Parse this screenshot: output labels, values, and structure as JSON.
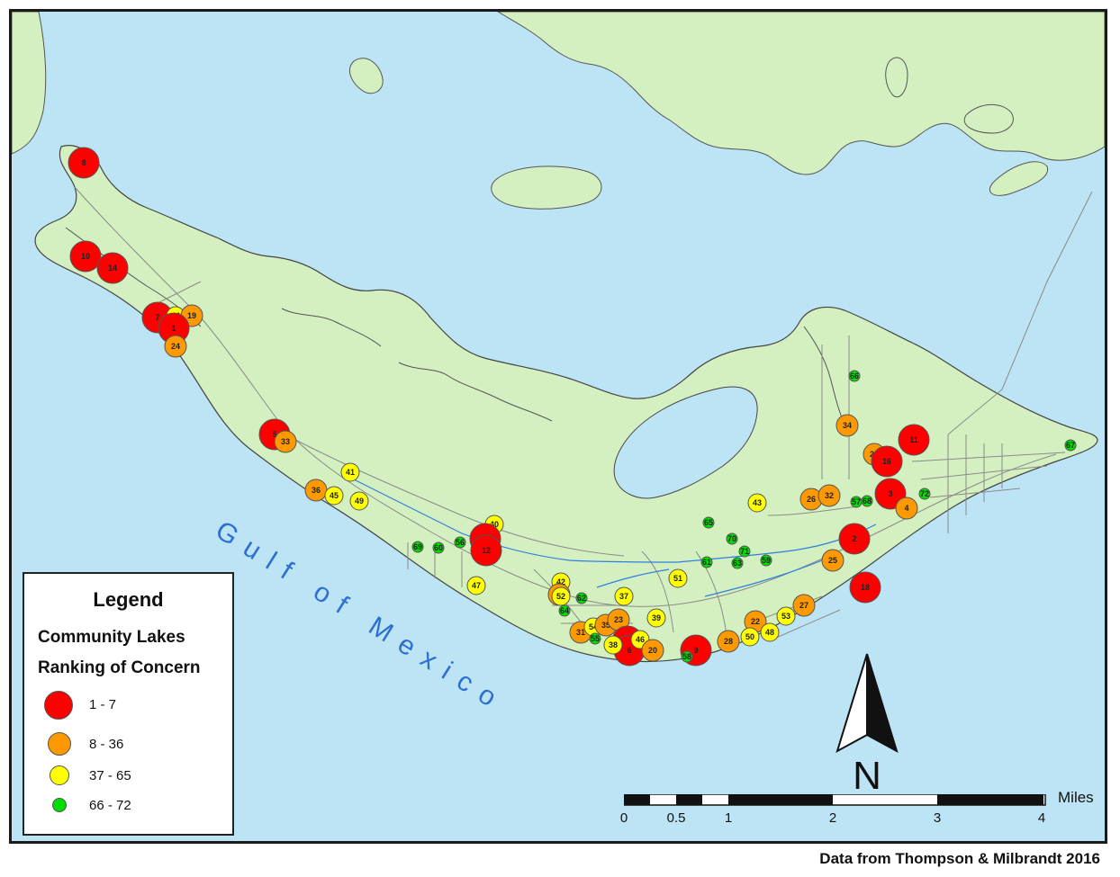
{
  "map": {
    "water_label": "Gulf of Mexico",
    "credit": "Data from Thompson & Milbrandt 2016",
    "colors": {
      "water": "#bde4f5",
      "land": "#d4f0c0",
      "roads": "#888888",
      "streams": "#2f7fe0"
    }
  },
  "legend": {
    "title": "Legend",
    "subtitle_1": "Community Lakes",
    "subtitle_2": "Ranking of Concern",
    "classes": [
      {
        "label": "1 - 7",
        "color": "#ff0000"
      },
      {
        "label": "8 - 36",
        "color": "#ff9900"
      },
      {
        "label": "37 - 65",
        "color": "#ffff00"
      },
      {
        "label": "66 - 72",
        "color": "#00dd00"
      }
    ]
  },
  "scale": {
    "units": "Miles",
    "ticks": [
      "0",
      "0.5",
      "1",
      "2",
      "3",
      "4"
    ]
  },
  "north_arrow": {
    "letter": "N"
  },
  "lakes": [
    {
      "id": "8",
      "class": 0
    },
    {
      "id": "10",
      "class": 0
    },
    {
      "id": "14",
      "class": 0
    },
    {
      "id": "7",
      "class": 0
    },
    {
      "id": "44",
      "class": 2
    },
    {
      "id": "19",
      "class": 1
    },
    {
      "id": "1",
      "class": 0
    },
    {
      "id": "24",
      "class": 1
    },
    {
      "id": "5",
      "class": 0
    },
    {
      "id": "33",
      "class": 1
    },
    {
      "id": "41",
      "class": 2
    },
    {
      "id": "36",
      "class": 1
    },
    {
      "id": "45",
      "class": 2
    },
    {
      "id": "49",
      "class": 2
    },
    {
      "id": "40",
      "class": 2
    },
    {
      "id": "13",
      "class": 0
    },
    {
      "id": "12",
      "class": 0
    },
    {
      "id": "69",
      "class": 3
    },
    {
      "id": "60",
      "class": 3
    },
    {
      "id": "56",
      "class": 3
    },
    {
      "id": "47",
      "class": 2
    },
    {
      "id": "42",
      "class": 2
    },
    {
      "id": "32",
      "class": 1
    },
    {
      "id": "52",
      "class": 2
    },
    {
      "id": "62",
      "class": 3
    },
    {
      "id": "64",
      "class": 3
    },
    {
      "id": "31",
      "class": 1
    },
    {
      "id": "54",
      "class": 2
    },
    {
      "id": "55",
      "class": 3
    },
    {
      "id": "35",
      "class": 1
    },
    {
      "id": "23",
      "class": 1
    },
    {
      "id": "15",
      "class": 0
    },
    {
      "id": "6",
      "class": 0
    },
    {
      "id": "38",
      "class": 2
    },
    {
      "id": "46",
      "class": 2
    },
    {
      "id": "20",
      "class": 1
    },
    {
      "id": "37",
      "class": 2
    },
    {
      "id": "39",
      "class": 2
    },
    {
      "id": "9",
      "class": 0
    },
    {
      "id": "58",
      "class": 3
    },
    {
      "id": "51",
      "class": 2
    },
    {
      "id": "65",
      "class": 3
    },
    {
      "id": "61",
      "class": 3
    },
    {
      "id": "70",
      "class": 3
    },
    {
      "id": "71",
      "class": 3
    },
    {
      "id": "63",
      "class": 3
    },
    {
      "id": "59",
      "class": 3
    },
    {
      "id": "28",
      "class": 1
    },
    {
      "id": "22",
      "class": 1
    },
    {
      "id": "50",
      "class": 2
    },
    {
      "id": "48",
      "class": 2
    },
    {
      "id": "53",
      "class": 2
    },
    {
      "id": "27",
      "class": 1
    },
    {
      "id": "25",
      "class": 1
    },
    {
      "id": "18",
      "class": 0
    },
    {
      "id": "2",
      "class": 0
    },
    {
      "id": "43",
      "class": 2
    },
    {
      "id": "26",
      "class": 1
    },
    {
      "id": "32",
      "class": 1
    },
    {
      "id": "57",
      "class": 3
    },
    {
      "id": "68",
      "class": 3
    },
    {
      "id": "3",
      "class": 0
    },
    {
      "id": "4",
      "class": 1
    },
    {
      "id": "72",
      "class": 3
    },
    {
      "id": "34",
      "class": 1
    },
    {
      "id": "21",
      "class": 1
    },
    {
      "id": "16",
      "class": 0
    },
    {
      "id": "11",
      "class": 0
    },
    {
      "id": "66",
      "class": 3
    },
    {
      "id": "67",
      "class": 3
    }
  ]
}
